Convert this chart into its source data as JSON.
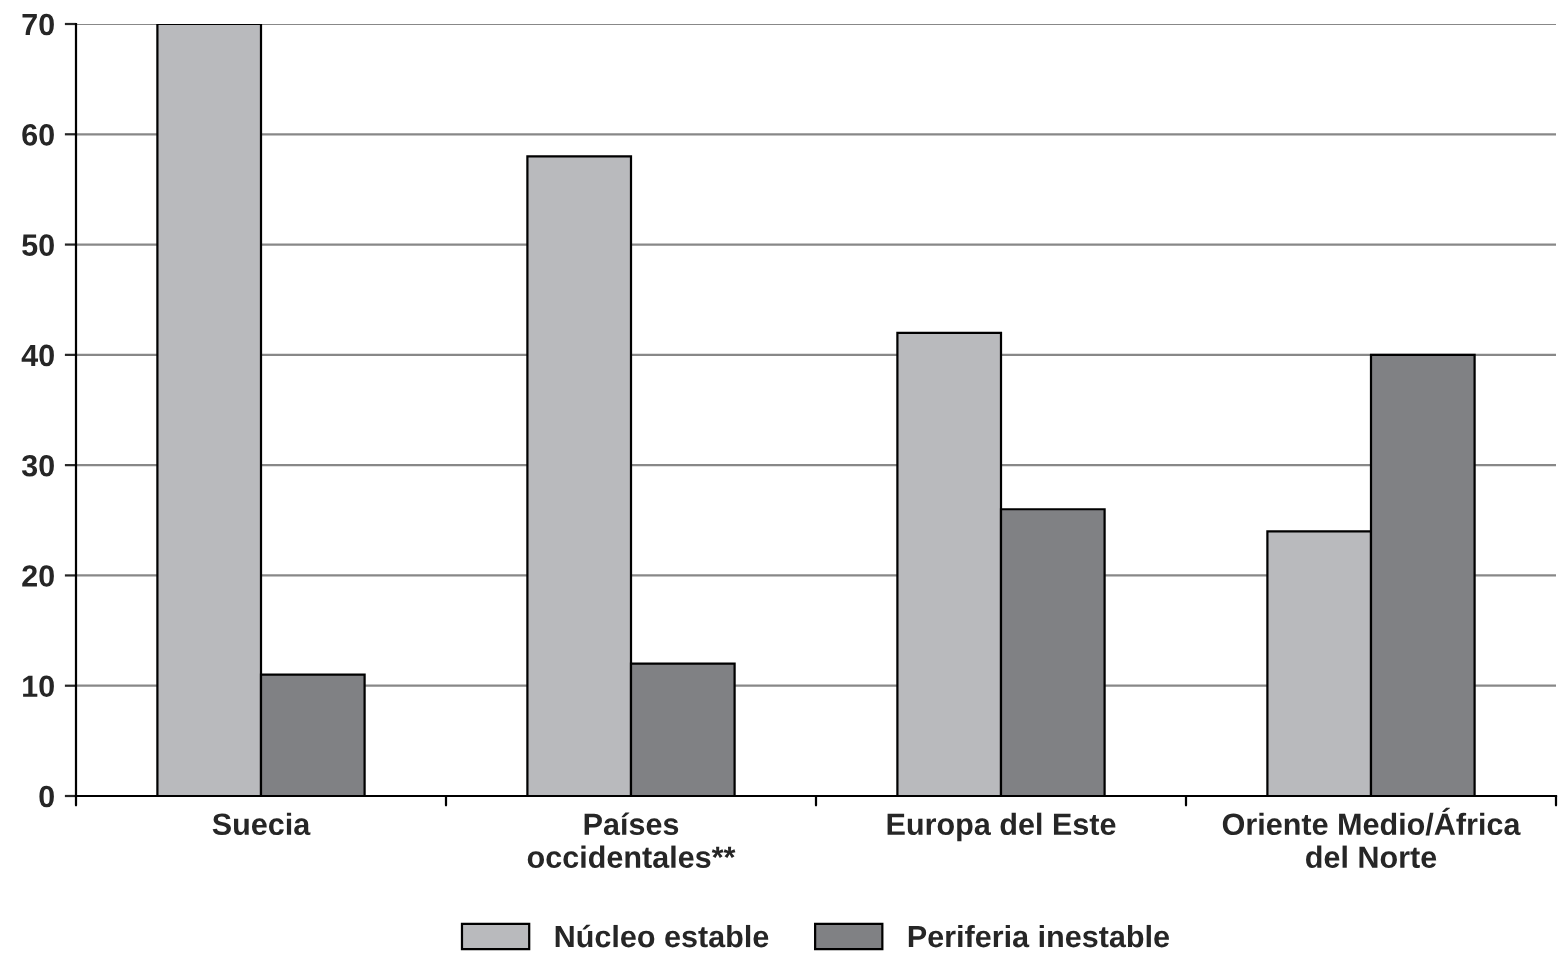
{
  "chart_data": {
    "type": "bar",
    "categories": [
      "Suecia",
      "Países\noccidentales**",
      "Europa del Este",
      "Oriente Medio/África\ndel Norte"
    ],
    "series": [
      {
        "name": "Núcleo estable",
        "color": "#b9babd",
        "values": [
          70,
          58,
          42,
          24
        ]
      },
      {
        "name": "Periferia inestable",
        "color": "#808184",
        "values": [
          11,
          12,
          26,
          40
        ]
      }
    ],
    "ylim": [
      0,
      70
    ],
    "yticks": [
      0,
      10,
      20,
      30,
      40,
      50,
      60,
      70
    ],
    "grid": "y",
    "legend": "bottom"
  }
}
